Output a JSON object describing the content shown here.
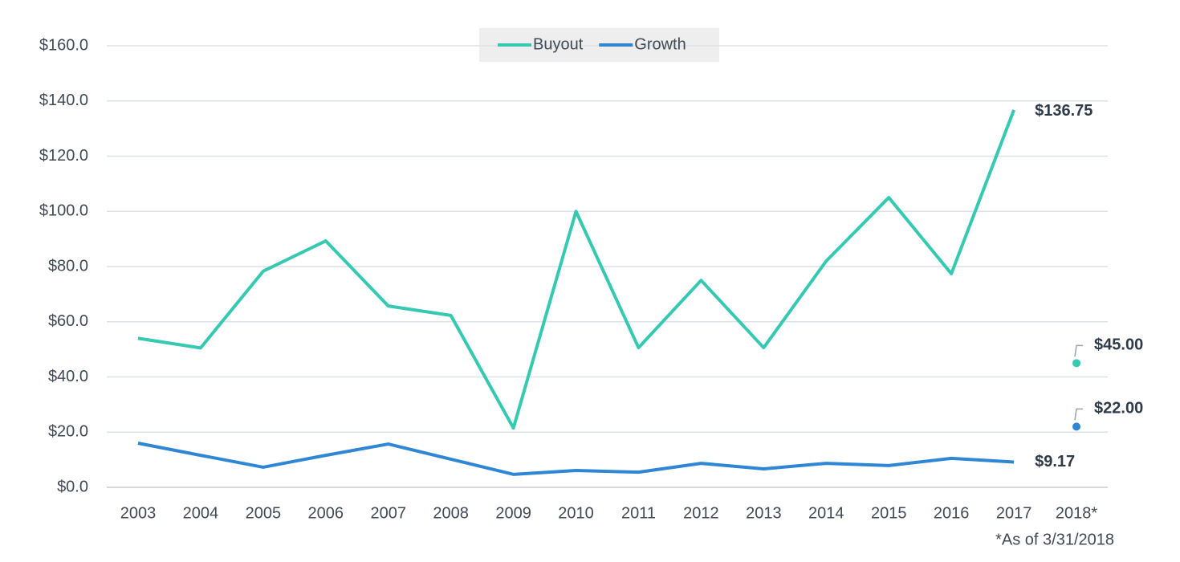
{
  "chart_data": {
    "type": "line",
    "categories": [
      "2003",
      "2004",
      "2005",
      "2006",
      "2007",
      "2008",
      "2009",
      "2010",
      "2011",
      "2012",
      "2013",
      "2014",
      "2015",
      "2016",
      "2017",
      "2018*"
    ],
    "series": [
      {
        "name": "Buyout",
        "color": "#35c9b2",
        "values": [
          54,
          50.5,
          78.3,
          89.3,
          65.7,
          62.3,
          21.5,
          100,
          50.6,
          75,
          50.6,
          82,
          105,
          77.4,
          136.75,
          null
        ],
        "value_labels": [
          null,
          null,
          null,
          null,
          null,
          null,
          null,
          null,
          null,
          null,
          null,
          null,
          null,
          null,
          "$136.75",
          null
        ],
        "marker": {
          "x": "2018*",
          "value": 45,
          "label": "$45.00"
        }
      },
      {
        "name": "Growth",
        "color": "#2f86d4",
        "values": [
          16,
          11.6,
          7.3,
          11.6,
          15.7,
          10.2,
          4.7,
          6.1,
          5.5,
          8.7,
          6.7,
          8.7,
          7.9,
          10.5,
          9.17,
          null
        ],
        "value_labels": [
          null,
          null,
          null,
          null,
          null,
          null,
          null,
          null,
          null,
          null,
          null,
          null,
          null,
          null,
          "$9.17",
          null
        ],
        "marker": {
          "x": "2018*",
          "value": 22,
          "label": "$22.00"
        }
      }
    ],
    "ylim": [
      0,
      160
    ],
    "yticks": [
      {
        "value": 0,
        "label": "$0.0"
      },
      {
        "value": 20,
        "label": "$20.0"
      },
      {
        "value": 40,
        "label": "$40.0"
      },
      {
        "value": 60,
        "label": "$60.0"
      },
      {
        "value": 80,
        "label": "$80.0"
      },
      {
        "value": 100,
        "label": "$100.0"
      },
      {
        "value": 120,
        "label": "$120.0"
      },
      {
        "value": 140,
        "label": "$140.0"
      },
      {
        "value": 160,
        "label": "$160.0"
      }
    ],
    "grid": true,
    "legend": "top",
    "note": "*As of 3/31/2018"
  }
}
